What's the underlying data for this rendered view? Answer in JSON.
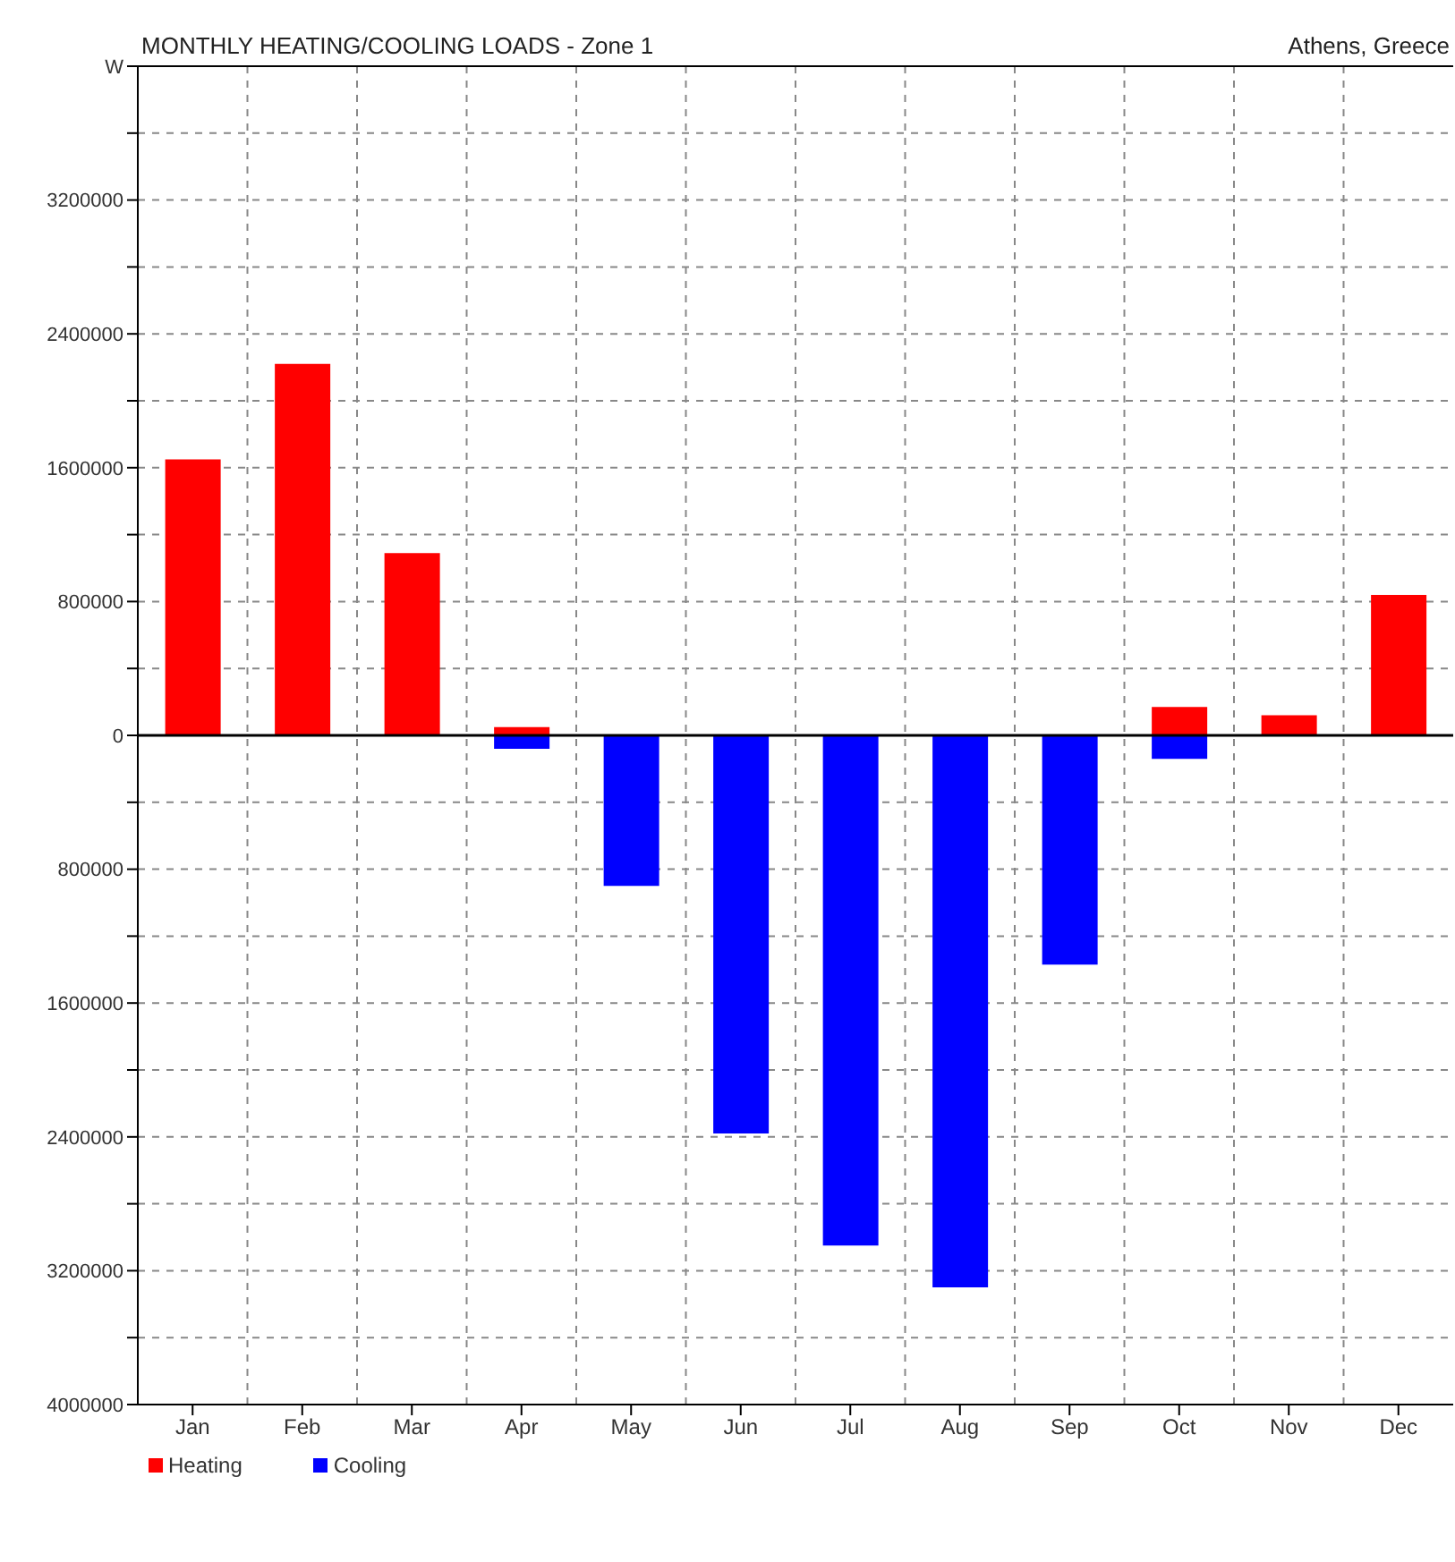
{
  "chart_data": {
    "type": "bar",
    "title": "MONTHLY HEATING/COOLING LOADS - Zone 1",
    "subtitle": "Athens, Greece",
    "stacked": true,
    "categories": [
      "Jan",
      "Feb",
      "Mar",
      "Apr",
      "May",
      "Jun",
      "Jul",
      "Aug",
      "Sep",
      "Oct",
      "Nov",
      "Dec"
    ],
    "series": [
      {
        "name": "Heating",
        "color": "#ff0000",
        "values": [
          1650000,
          2220000,
          1090000,
          50000,
          0,
          0,
          0,
          0,
          0,
          170000,
          120000,
          840000
        ]
      },
      {
        "name": "Cooling",
        "color": "#0000ff",
        "values": [
          0,
          0,
          0,
          -80000,
          -900000,
          -2380000,
          -3050000,
          -3300000,
          -1370000,
          -140000,
          0,
          0
        ]
      }
    ],
    "ylim": [
      -4000000,
      4000000
    ],
    "yticks": [
      {
        "value": 4000000,
        "label": "W"
      },
      {
        "value": 3600000,
        "label": null
      },
      3200000,
      {
        "value": 2800000,
        "label": null
      },
      2400000,
      {
        "value": 2000000,
        "label": null
      },
      1600000,
      {
        "value": 1200000,
        "label": null
      },
      800000,
      {
        "value": 400000,
        "label": null
      },
      0,
      {
        "value": -400000,
        "label": null
      },
      {
        "value": -800000,
        "label": "800000"
      },
      {
        "value": -1200000,
        "label": null
      },
      {
        "value": -1600000,
        "label": "1600000"
      },
      {
        "value": -2000000,
        "label": null
      },
      {
        "value": -2400000,
        "label": "2400000"
      },
      {
        "value": -2800000,
        "label": null
      },
      {
        "value": -3200000,
        "label": "3200000"
      },
      {
        "value": -3600000,
        "label": null
      },
      {
        "value": -4000000,
        "label": "4000000"
      }
    ],
    "grid": true,
    "legend": "bottom left"
  }
}
